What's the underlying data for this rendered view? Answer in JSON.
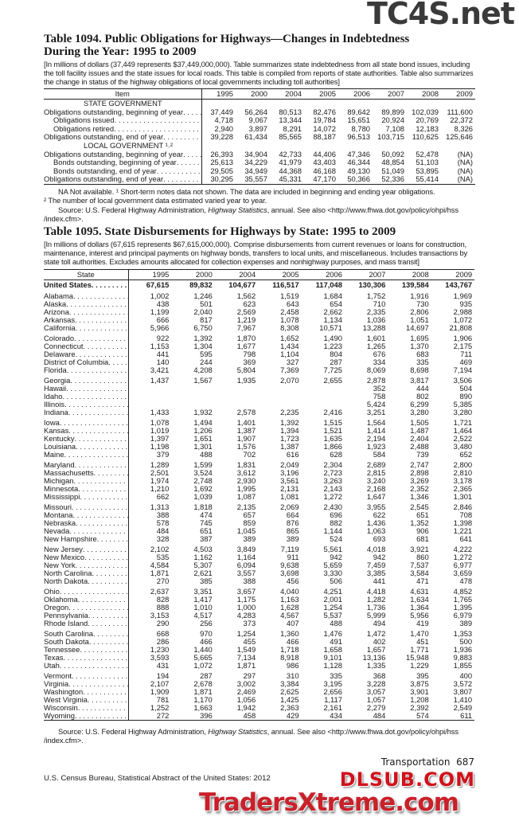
{
  "watermarks": {
    "top": "TC4S.net",
    "middle": "DLSUB.COM",
    "bottom": "TradersXtreme.com"
  },
  "table1094": {
    "title_line1": "Table 1094. Public Obligations for Highways—Changes in Indebtedness",
    "title_line2": "During the Year: 1995 to 2009",
    "headnote": "[In millions of dollars (37,449 represents $37,449,000,000). Table summarizes state indebtedness from all state bond issues, including the toll facility issues and the state issues for local roads. This table is compiled from reports of state authorities. Table also summarizes the change in status of the highway obligations of local governments including toll authorities]",
    "columns": [
      "Item",
      "1995",
      "2000",
      "2004",
      "2005",
      "2006",
      "2007",
      "2008",
      "2009"
    ],
    "rows": [
      {
        "section": "STATE GOVERNMENT"
      },
      {
        "label": "Obligations outstanding, beginning of year",
        "indent": false,
        "values": [
          "37,449",
          "56,264",
          "80,513",
          "82,476",
          "89,642",
          "89,899",
          "102,039",
          "111,600"
        ]
      },
      {
        "label": "Obligations issued",
        "indent": true,
        "values": [
          "4,718",
          "9,067",
          "13,344",
          "19,784",
          "15,651",
          "20,924",
          "20,769",
          "22,372"
        ]
      },
      {
        "label": "Obligations retired",
        "indent": true,
        "values": [
          "2,940",
          "3,897",
          "8,291",
          "14,072",
          "8,780",
          "7,108",
          "12,183",
          "8,326"
        ]
      },
      {
        "label": "Obligations outstanding, end of year",
        "indent": false,
        "values": [
          "39,228",
          "61,434",
          "85,565",
          "88,187",
          "96,513",
          "103,715",
          "110,625",
          "125,646"
        ]
      },
      {
        "section": "LOCAL GOVERNMENT ¹˒²"
      },
      {
        "label": "Obligations outstanding, beginning of year",
        "indent": false,
        "values": [
          "26,393",
          "34,904",
          "42,733",
          "44,406",
          "47,346",
          "50,092",
          "52,478",
          "(NA)"
        ]
      },
      {
        "label": "Bonds outstanding, beginning of year",
        "indent": true,
        "values": [
          "25,613",
          "34,229",
          "41,979",
          "43,403",
          "46,344",
          "48,854",
          "51,103",
          "(NA)"
        ]
      },
      {
        "label": "Bonds outstanding, end of year",
        "indent": true,
        "values": [
          "29,505",
          "34,949",
          "44,368",
          "46,168",
          "49,130",
          "51,049",
          "53,895",
          "(NA)"
        ]
      },
      {
        "label": "Obligations outstanding, end of year",
        "indent": false,
        "values": [
          "30,295",
          "35,557",
          "45,331",
          "47,170",
          "50,366",
          "52,336",
          "55,414",
          "(NA)"
        ]
      }
    ],
    "note1": "NA Not available. ¹ Short-term notes data not shown. The data are included in beginning and ending year obligations.",
    "note2": "² The number of local government data estimated varied year to year.",
    "source_prefix": "Source: U.S. Federal Highway Administration, ",
    "source_italic": "Highway Statistics",
    "source_suffix": ", annual. See also <http://www.fhwa.dot.gov/policy/ohpi/hss /index.cfm>."
  },
  "table1095": {
    "title": "Table 1095. State Disbursements for Highways by State: 1995 to 2009",
    "headnote": "[In millions of dollars (67,615 represents $67,615,000,000). Comprise disbursements from current revenues or loans for construction, maintenance, interest and principal payments on highway bonds, transfers to local units, and miscellaneous. Includes transactions by state toll authorities. Excludes amounts allocated for collection expenses and nonhighway purposes, and mass transit]",
    "columns": [
      "State",
      "1995",
      "2000",
      "2004",
      "2005",
      "2006",
      "2007",
      "2008",
      "2009"
    ],
    "total": {
      "label": "United States",
      "values": [
        "67,615",
        "89,832",
        "104,677",
        "116,517",
        "117,048",
        "130,306",
        "139,584",
        "143,767"
      ]
    },
    "groups": [
      [
        {
          "label": "Alabama",
          "values": [
            "1,002",
            "1,246",
            "1,562",
            "1,519",
            "1,684",
            "1,752",
            "1,916",
            "1,969"
          ]
        },
        {
          "label": "Alaska",
          "values": [
            "438",
            "501",
            "623",
            "643",
            "654",
            "710",
            "730",
            "935"
          ]
        },
        {
          "label": "Arizona",
          "values": [
            "1,199",
            "2,040",
            "2,569",
            "2,458",
            "2,662",
            "2,335",
            "2,806",
            "2,988"
          ]
        },
        {
          "label": "Arkansas",
          "values": [
            "666",
            "817",
            "1,219",
            "1,078",
            "1,134",
            "1,036",
            "1,051",
            "1,072"
          ]
        },
        {
          "label": "California",
          "values": [
            "5,966",
            "6,750",
            "7,967",
            "8,308",
            "10,571",
            "13,288",
            "14,697",
            "21,808"
          ]
        }
      ],
      [
        {
          "label": "Colorado",
          "values": [
            "922",
            "1,392",
            "1,870",
            "1,652",
            "1,490",
            "1,601",
            "1,695",
            "1,906"
          ]
        },
        {
          "label": "Connecticut",
          "values": [
            "1,153",
            "1,304",
            "1,677",
            "1,434",
            "1,223",
            "1,265",
            "1,370",
            "2,175"
          ]
        },
        {
          "label": "Delaware",
          "values": [
            "441",
            "595",
            "798",
            "1,104",
            "804",
            "676",
            "683",
            "711"
          ]
        },
        {
          "label": "District of Columbia",
          "values": [
            "140",
            "244",
            "369",
            "327",
            "287",
            "334",
            "335",
            "469"
          ]
        },
        {
          "label": "Florida",
          "values": [
            "3,421",
            "4,208",
            "5,804",
            "7,369",
            "7,725",
            "8,069",
            "8,698",
            "7,194"
          ]
        }
      ],
      [
        {
          "label": "Georgia",
          "values": [
            "1,437",
            "1,567",
            "1,935",
            "2,070",
            "2,655",
            "2,878",
            "3,817",
            "3,506"
          ]
        },
        {
          "label": "Hawaii",
          "values": [
            "",
            "",
            "",
            "",
            "",
            "352",
            "444",
            "504"
          ]
        },
        {
          "label": "Idaho",
          "values": [
            "",
            "",
            "",
            "",
            "",
            "758",
            "802",
            "890"
          ]
        },
        {
          "label": "Illinois",
          "values": [
            "",
            "",
            "",
            "",
            "",
            "5,424",
            "6,299",
            "5,385"
          ]
        },
        {
          "label": "Indiana",
          "values": [
            "1,433",
            "1,932",
            "2,578",
            "2,235",
            "2,416",
            "3,251",
            "3,280",
            "3,280"
          ]
        }
      ],
      [
        {
          "label": "Iowa",
          "values": [
            "1,078",
            "1,494",
            "1,401",
            "1,392",
            "1,515",
            "1,564",
            "1,505",
            "1,721"
          ]
        },
        {
          "label": "Kansas",
          "values": [
            "1,019",
            "1,206",
            "1,387",
            "1,394",
            "1,521",
            "1,414",
            "1,487",
            "1,464"
          ]
        },
        {
          "label": "Kentucky",
          "values": [
            "1,397",
            "1,651",
            "1,907",
            "1,723",
            "1,635",
            "2,194",
            "2,404",
            "2,522"
          ]
        },
        {
          "label": "Louisiana",
          "values": [
            "1,198",
            "1,301",
            "1,576",
            "1,387",
            "1,866",
            "1,923",
            "2,488",
            "3,480"
          ]
        },
        {
          "label": "Maine",
          "values": [
            "379",
            "488",
            "702",
            "616",
            "628",
            "584",
            "739",
            "652"
          ]
        }
      ],
      [
        {
          "label": "Maryland",
          "values": [
            "1,289",
            "1,599",
            "1,831",
            "2,049",
            "2,304",
            "2,689",
            "2,747",
            "2,800"
          ]
        },
        {
          "label": "Massachusetts",
          "values": [
            "2,501",
            "3,524",
            "3,612",
            "3,196",
            "2,723",
            "2,815",
            "2,898",
            "2,810"
          ]
        },
        {
          "label": "Michigan",
          "values": [
            "1,974",
            "2,748",
            "2,930",
            "3,561",
            "3,263",
            "3,240",
            "3,269",
            "3,178"
          ]
        },
        {
          "label": "Minnesota",
          "values": [
            "1,210",
            "1,692",
            "1,995",
            "2,131",
            "2,143",
            "2,168",
            "2,352",
            "2,365"
          ]
        },
        {
          "label": "Mississippi",
          "values": [
            "662",
            "1,039",
            "1,087",
            "1,081",
            "1,272",
            "1,647",
            "1,346",
            "1,301"
          ]
        }
      ],
      [
        {
          "label": "Missouri",
          "values": [
            "1,313",
            "1,818",
            "2,135",
            "2,069",
            "2,430",
            "3,955",
            "2,545",
            "2,846"
          ]
        },
        {
          "label": "Montana",
          "values": [
            "388",
            "474",
            "657",
            "664",
            "696",
            "622",
            "651",
            "708"
          ]
        },
        {
          "label": "Nebraska",
          "values": [
            "578",
            "745",
            "859",
            "876",
            "882",
            "1,436",
            "1,352",
            "1,398"
          ]
        },
        {
          "label": "Nevada",
          "values": [
            "484",
            "651",
            "1,045",
            "865",
            "1,144",
            "1,063",
            "906",
            "1,221"
          ]
        },
        {
          "label": "New Hampshire",
          "values": [
            "328",
            "387",
            "389",
            "389",
            "524",
            "693",
            "681",
            "641"
          ]
        }
      ],
      [
        {
          "label": "New Jersey",
          "values": [
            "2,102",
            "4,503",
            "3,849",
            "7,119",
            "5,561",
            "4,018",
            "3,921",
            "4,222"
          ]
        },
        {
          "label": "New Mexico",
          "values": [
            "535",
            "1,162",
            "1,164",
            "911",
            "942",
            "942",
            "860",
            "1,272"
          ]
        },
        {
          "label": "New York",
          "values": [
            "4,584",
            "5,307",
            "6,094",
            "9,638",
            "5,659",
            "7,459",
            "7,537",
            "6,977"
          ]
        },
        {
          "label": "North Carolina",
          "values": [
            "1,871",
            "2,621",
            "3,557",
            "3,698",
            "3,330",
            "3,385",
            "3,584",
            "3,659"
          ]
        },
        {
          "label": "North Dakota",
          "values": [
            "270",
            "385",
            "388",
            "456",
            "506",
            "441",
            "471",
            "478"
          ]
        }
      ],
      [
        {
          "label": "Ohio",
          "values": [
            "2,637",
            "3,351",
            "3,657",
            "4,040",
            "4,251",
            "4,418",
            "4,631",
            "4,852"
          ]
        },
        {
          "label": "Oklahoma",
          "values": [
            "828",
            "1,417",
            "1,175",
            "1,163",
            "2,001",
            "1,282",
            "1,634",
            "1,765"
          ]
        },
        {
          "label": "Oregon",
          "values": [
            "888",
            "1,010",
            "1,000",
            "1,628",
            "1,254",
            "1,736",
            "1,364",
            "1,395"
          ]
        },
        {
          "label": "Pennsylvania",
          "values": [
            "3,153",
            "4,517",
            "4,283",
            "4,567",
            "5,537",
            "5,999",
            "5,956",
            "6,979"
          ]
        },
        {
          "label": "Rhode Island",
          "values": [
            "290",
            "256",
            "373",
            "407",
            "488",
            "494",
            "419",
            "389"
          ]
        }
      ],
      [
        {
          "label": "South Carolina",
          "values": [
            "668",
            "970",
            "1,254",
            "1,360",
            "1,476",
            "1,472",
            "1,470",
            "1,353"
          ]
        },
        {
          "label": "South Dakota",
          "values": [
            "286",
            "466",
            "455",
            "466",
            "491",
            "402",
            "451",
            "500"
          ]
        },
        {
          "label": "Tennessee",
          "values": [
            "1,230",
            "1,440",
            "1,549",
            "1,718",
            "1,658",
            "1,657",
            "1,771",
            "1,936"
          ]
        },
        {
          "label": "Texas",
          "values": [
            "3,593",
            "5,665",
            "7,134",
            "8,918",
            "9,101",
            "13,136",
            "15,948",
            "9,883"
          ]
        },
        {
          "label": "Utah",
          "values": [
            "431",
            "1,072",
            "1,871",
            "986",
            "1,128",
            "1,335",
            "1,229",
            "1,855"
          ]
        }
      ],
      [
        {
          "label": "Vermont",
          "values": [
            "194",
            "287",
            "297",
            "310",
            "335",
            "368",
            "395",
            "400"
          ]
        },
        {
          "label": "Virginia",
          "values": [
            "2,107",
            "2,678",
            "3,002",
            "3,384",
            "3,195",
            "3,228",
            "3,875",
            "3,572"
          ]
        },
        {
          "label": "Washington",
          "values": [
            "1,909",
            "1,871",
            "2,469",
            "2,625",
            "2,656",
            "3,057",
            "3,901",
            "3,807"
          ]
        },
        {
          "label": "West Virginia",
          "values": [
            "781",
            "1,170",
            "1,056",
            "1,425",
            "1,117",
            "1,057",
            "1,208",
            "1,410"
          ]
        },
        {
          "label": "Wisconsin",
          "values": [
            "1,252",
            "1,663",
            "1,942",
            "2,363",
            "2,161",
            "2,279",
            "2,392",
            "2,549"
          ]
        },
        {
          "label": "Wyoming",
          "values": [
            "272",
            "396",
            "458",
            "429",
            "434",
            "484",
            "574",
            "611"
          ]
        }
      ]
    ],
    "source_prefix": "Source: U.S. Federal Highway Administration, ",
    "source_italic": "Highway Statistics",
    "source_suffix": ", annual. See also <http://www.fhwa.dot.gov/policy/ohpi/hss /index.cfm>."
  },
  "footer": {
    "section": "Transportation",
    "page_number": "687",
    "publication": "U.S. Census Bureau, Statistical Abstract of the United States: 2012"
  }
}
